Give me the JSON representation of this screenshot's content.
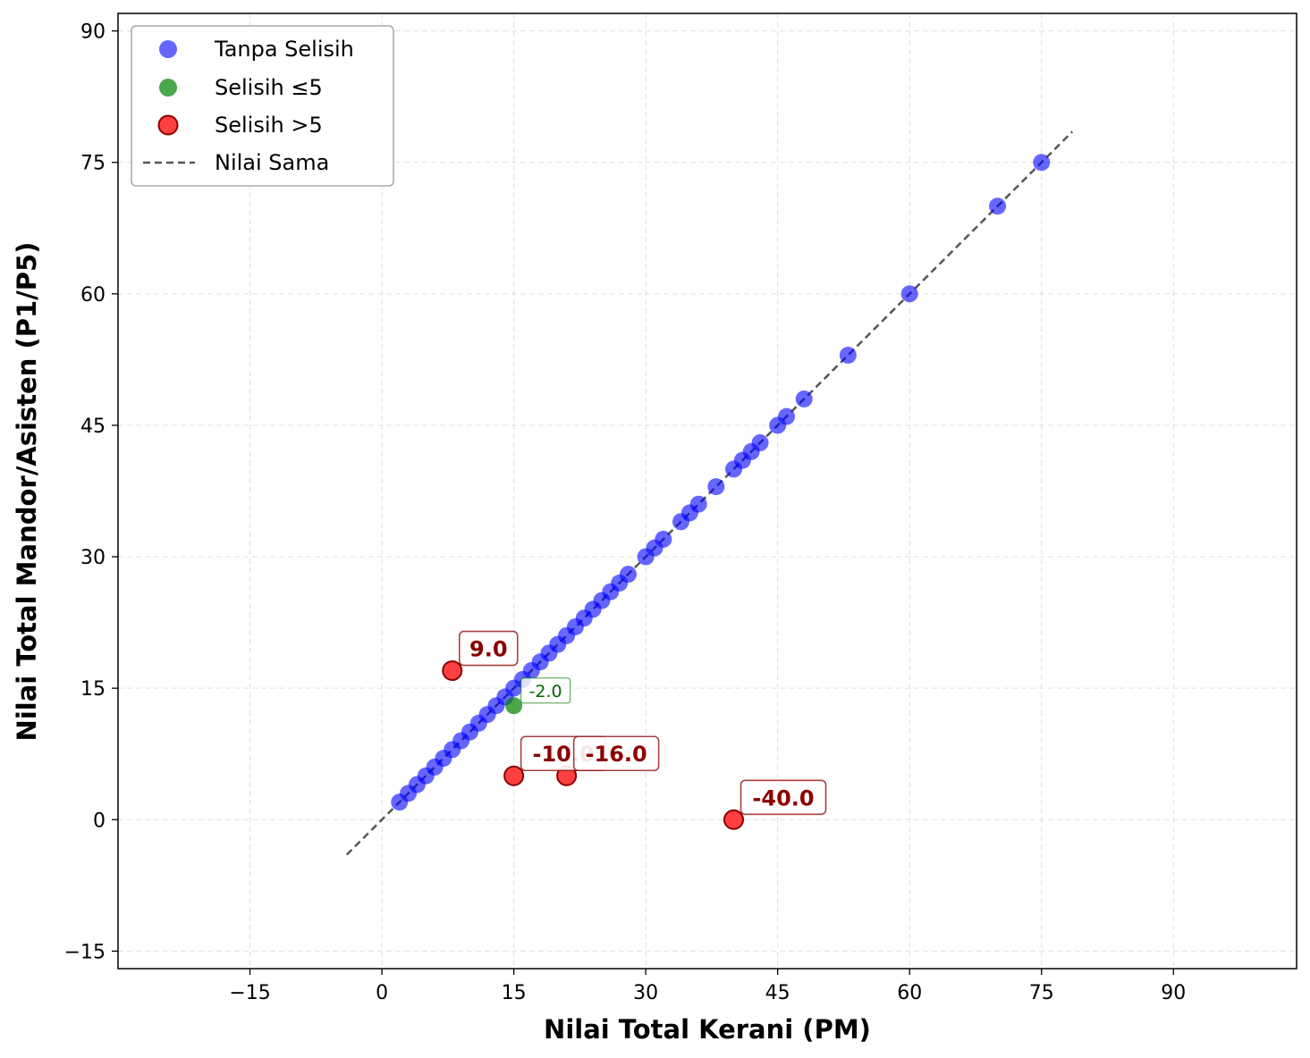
{
  "chart_data": {
    "type": "scatter",
    "title": "",
    "xlabel": "Nilai Total Kerani (PM)",
    "ylabel": "Nilai Total Mandor/Asisten (P1/P5)",
    "xlim": [
      -30,
      104
    ],
    "ylim": [
      -17,
      92
    ],
    "xticks": [
      -15,
      0,
      15,
      30,
      45,
      60,
      75,
      90
    ],
    "yticks": [
      -15,
      0,
      15,
      30,
      45,
      60,
      75,
      90
    ],
    "xtick_labels": [
      "−15",
      "0",
      "15",
      "30",
      "45",
      "60",
      "75",
      "90"
    ],
    "ytick_labels": [
      "−15",
      "0",
      "15",
      "30",
      "45",
      "60",
      "75",
      "90"
    ],
    "grid": true,
    "legend_position": "upper-left",
    "reference_line": {
      "name": "Nilai Sama",
      "from": [
        -4,
        -4
      ],
      "to": [
        78.5,
        78.5
      ],
      "style": "dashed",
      "color": "#555555"
    },
    "series": [
      {
        "name": "Tanpa Selisih",
        "color": "#0000ff",
        "points": [
          [
            2,
            2
          ],
          [
            3,
            3
          ],
          [
            4,
            4
          ],
          [
            5,
            5
          ],
          [
            6,
            6
          ],
          [
            7,
            7
          ],
          [
            8,
            8
          ],
          [
            9,
            9
          ],
          [
            10,
            10
          ],
          [
            11,
            11
          ],
          [
            12,
            12
          ],
          [
            13,
            13
          ],
          [
            14,
            14
          ],
          [
            15,
            15
          ],
          [
            16,
            16
          ],
          [
            17,
            17
          ],
          [
            18,
            18
          ],
          [
            19,
            19
          ],
          [
            20,
            20
          ],
          [
            21,
            21
          ],
          [
            22,
            22
          ],
          [
            23,
            23
          ],
          [
            24,
            24
          ],
          [
            25,
            25
          ],
          [
            26,
            26
          ],
          [
            27,
            27
          ],
          [
            28,
            28
          ],
          [
            30,
            30
          ],
          [
            31,
            31
          ],
          [
            32,
            32
          ],
          [
            34,
            34
          ],
          [
            35,
            35
          ],
          [
            36,
            36
          ],
          [
            38,
            38
          ],
          [
            40,
            40
          ],
          [
            41,
            41
          ],
          [
            42,
            42
          ],
          [
            43,
            43
          ],
          [
            45,
            45
          ],
          [
            46,
            46
          ],
          [
            48,
            48
          ],
          [
            53,
            53
          ],
          [
            60,
            60
          ],
          [
            70,
            70
          ],
          [
            75,
            75
          ]
        ]
      },
      {
        "name": "Selisih ≤5",
        "color": "#008000",
        "points": [
          [
            15,
            13
          ]
        ],
        "labels": [
          "-2.0"
        ]
      },
      {
        "name": "Selisih >5",
        "color": "#ff0000",
        "points": [
          [
            8,
            17
          ],
          [
            15,
            5
          ],
          [
            21,
            5
          ],
          [
            40,
            0
          ]
        ],
        "labels": [
          "9.0",
          "-10.0",
          "-16.0",
          "-40.0"
        ]
      }
    ]
  }
}
